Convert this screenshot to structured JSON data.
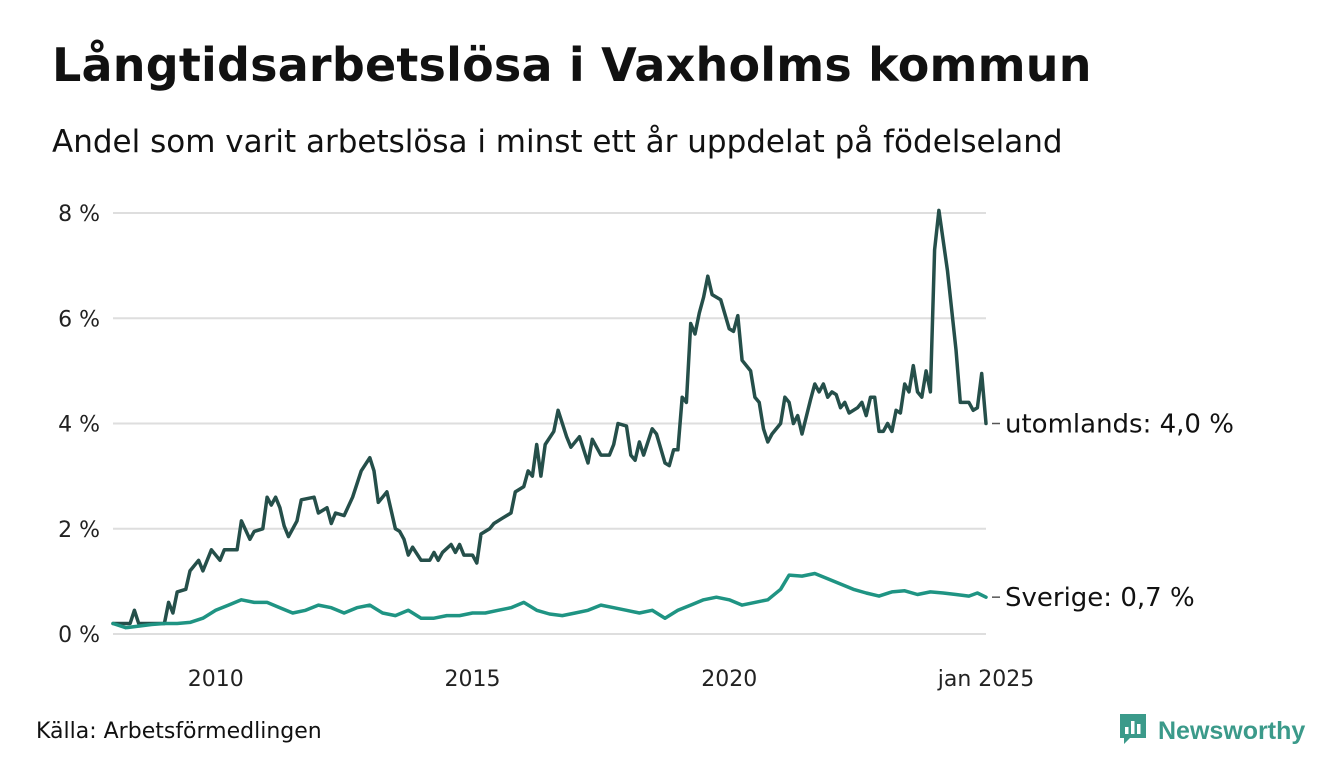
{
  "title": "Långtidsarbetslösa i Vaxholms kommun",
  "subtitle": "Andel som varit arbetslösa i minst ett år uppdelat på födelseland",
  "source": "Källa: Arbetsförmedlingen",
  "brand": {
    "name": "Newsworthy",
    "icon": "newsworthy-logo-icon",
    "color": "#3b9a8a"
  },
  "chart_data": {
    "type": "line",
    "title": "Långtidsarbetslösa i Vaxholms kommun",
    "subtitle": "Andel som varit arbetslösa i minst ett år uppdelat på födelseland",
    "xlabel": "",
    "ylabel": "",
    "x_start": "2008-01",
    "x_end": "2025-01",
    "ylim": [
      0,
      8
    ],
    "y_ticks": [
      0,
      2,
      4,
      6,
      8
    ],
    "y_tick_labels": [
      "0 %",
      "2 %",
      "4 %",
      "6 %",
      "8 %"
    ],
    "x_tick_labels": [
      {
        "date": "2010-01",
        "label": "2010"
      },
      {
        "date": "2015-01",
        "label": "2015"
      },
      {
        "date": "2020-01",
        "label": "2020"
      },
      {
        "date": "2025-01",
        "label": "jan 2025"
      }
    ],
    "grid": true,
    "series": [
      {
        "name": "utomlands",
        "end_label": "utomlands: 4,0 %",
        "color": "#254f4a",
        "points": [
          [
            "2008-01",
            0.2
          ],
          [
            "2008-05",
            0.2
          ],
          [
            "2008-06",
            0.45
          ],
          [
            "2008-07",
            0.2
          ],
          [
            "2009-01",
            0.2
          ],
          [
            "2009-02",
            0.6
          ],
          [
            "2009-03",
            0.4
          ],
          [
            "2009-04",
            0.8
          ],
          [
            "2009-06",
            0.85
          ],
          [
            "2009-07",
            1.2
          ],
          [
            "2009-09",
            1.4
          ],
          [
            "2009-10",
            1.2
          ],
          [
            "2009-12",
            1.6
          ],
          [
            "2010-02",
            1.4
          ],
          [
            "2010-03",
            1.6
          ],
          [
            "2010-06",
            1.6
          ],
          [
            "2010-07",
            2.15
          ],
          [
            "2010-09",
            1.8
          ],
          [
            "2010-10",
            1.95
          ],
          [
            "2010-12",
            2.0
          ],
          [
            "2011-01",
            2.6
          ],
          [
            "2011-02",
            2.45
          ],
          [
            "2011-03",
            2.6
          ],
          [
            "2011-04",
            2.4
          ],
          [
            "2011-05",
            2.05
          ],
          [
            "2011-06",
            1.85
          ],
          [
            "2011-08",
            2.15
          ],
          [
            "2011-09",
            2.55
          ],
          [
            "2011-12",
            2.6
          ],
          [
            "2012-01",
            2.3
          ],
          [
            "2012-03",
            2.4
          ],
          [
            "2012-04",
            2.1
          ],
          [
            "2012-05",
            2.3
          ],
          [
            "2012-07",
            2.25
          ],
          [
            "2012-09",
            2.6
          ],
          [
            "2012-11",
            3.1
          ],
          [
            "2013-01",
            3.35
          ],
          [
            "2013-02",
            3.1
          ],
          [
            "2013-03",
            2.5
          ],
          [
            "2013-05",
            2.7
          ],
          [
            "2013-07",
            2.0
          ],
          [
            "2013-08",
            1.95
          ],
          [
            "2013-09",
            1.8
          ],
          [
            "2013-10",
            1.5
          ],
          [
            "2013-11",
            1.65
          ],
          [
            "2014-01",
            1.4
          ],
          [
            "2014-03",
            1.4
          ],
          [
            "2014-04",
            1.55
          ],
          [
            "2014-05",
            1.4
          ],
          [
            "2014-06",
            1.55
          ],
          [
            "2014-08",
            1.7
          ],
          [
            "2014-09",
            1.55
          ],
          [
            "2014-10",
            1.7
          ],
          [
            "2014-11",
            1.5
          ],
          [
            "2015-01",
            1.5
          ],
          [
            "2015-02",
            1.35
          ],
          [
            "2015-03",
            1.9
          ],
          [
            "2015-05",
            2.0
          ],
          [
            "2015-06",
            2.1
          ],
          [
            "2015-08",
            2.2
          ],
          [
            "2015-10",
            2.3
          ],
          [
            "2015-11",
            2.7
          ],
          [
            "2016-01",
            2.8
          ],
          [
            "2016-02",
            3.1
          ],
          [
            "2016-03",
            3.0
          ],
          [
            "2016-04",
            3.6
          ],
          [
            "2016-05",
            3.0
          ],
          [
            "2016-06",
            3.6
          ],
          [
            "2016-08",
            3.85
          ],
          [
            "2016-09",
            4.25
          ],
          [
            "2016-11",
            3.75
          ],
          [
            "2016-12",
            3.55
          ],
          [
            "2017-02",
            3.75
          ],
          [
            "2017-04",
            3.25
          ],
          [
            "2017-05",
            3.7
          ],
          [
            "2017-07",
            3.4
          ],
          [
            "2017-09",
            3.4
          ],
          [
            "2017-10",
            3.6
          ],
          [
            "2017-11",
            4.0
          ],
          [
            "2018-01",
            3.95
          ],
          [
            "2018-02",
            3.4
          ],
          [
            "2018-03",
            3.3
          ],
          [
            "2018-04",
            3.65
          ],
          [
            "2018-05",
            3.4
          ],
          [
            "2018-07",
            3.9
          ],
          [
            "2018-08",
            3.8
          ],
          [
            "2018-10",
            3.25
          ],
          [
            "2018-11",
            3.2
          ],
          [
            "2018-12",
            3.5
          ],
          [
            "2019-01",
            3.5
          ],
          [
            "2019-02",
            4.5
          ],
          [
            "2019-03",
            4.4
          ],
          [
            "2019-04",
            5.9
          ],
          [
            "2019-05",
            5.7
          ],
          [
            "2019-06",
            6.1
          ],
          [
            "2019-07",
            6.4
          ],
          [
            "2019-08",
            6.8
          ],
          [
            "2019-09",
            6.45
          ],
          [
            "2019-11",
            6.35
          ],
          [
            "2020-01",
            5.8
          ],
          [
            "2020-02",
            5.75
          ],
          [
            "2020-03",
            6.05
          ],
          [
            "2020-04",
            5.2
          ],
          [
            "2020-06",
            5.0
          ],
          [
            "2020-07",
            4.5
          ],
          [
            "2020-08",
            4.4
          ],
          [
            "2020-09",
            3.9
          ],
          [
            "2020-10",
            3.65
          ],
          [
            "2020-11",
            3.8
          ],
          [
            "2021-01",
            4.0
          ],
          [
            "2021-02",
            4.5
          ],
          [
            "2021-03",
            4.4
          ],
          [
            "2021-04",
            4.0
          ],
          [
            "2021-05",
            4.15
          ],
          [
            "2021-06",
            3.8
          ],
          [
            "2021-08",
            4.45
          ],
          [
            "2021-09",
            4.75
          ],
          [
            "2021-10",
            4.6
          ],
          [
            "2021-11",
            4.75
          ],
          [
            "2021-12",
            4.5
          ],
          [
            "2022-01",
            4.6
          ],
          [
            "2022-02",
            4.55
          ],
          [
            "2022-03",
            4.3
          ],
          [
            "2022-04",
            4.4
          ],
          [
            "2022-05",
            4.2
          ],
          [
            "2022-07",
            4.3
          ],
          [
            "2022-08",
            4.4
          ],
          [
            "2022-09",
            4.15
          ],
          [
            "2022-10",
            4.5
          ],
          [
            "2022-11",
            4.5
          ],
          [
            "2022-12",
            3.85
          ],
          [
            "2023-01",
            3.85
          ],
          [
            "2023-02",
            4.0
          ],
          [
            "2023-03",
            3.85
          ],
          [
            "2023-04",
            4.25
          ],
          [
            "2023-05",
            4.2
          ],
          [
            "2023-06",
            4.75
          ],
          [
            "2023-07",
            4.6
          ],
          [
            "2023-08",
            5.1
          ],
          [
            "2023-09",
            4.6
          ],
          [
            "2023-10",
            4.5
          ],
          [
            "2023-11",
            5.0
          ],
          [
            "2023-12",
            4.6
          ],
          [
            "2024-01",
            7.3
          ],
          [
            "2024-02",
            8.05
          ],
          [
            "2024-04",
            6.9
          ],
          [
            "2024-06",
            5.4
          ],
          [
            "2024-07",
            4.4
          ],
          [
            "2024-09",
            4.4
          ],
          [
            "2024-10",
            4.25
          ],
          [
            "2024-11",
            4.3
          ],
          [
            "2024-12",
            4.95
          ],
          [
            "2025-01",
            4.0
          ]
        ]
      },
      {
        "name": "Sverige",
        "end_label": "Sverige: 0,7 %",
        "color": "#1f9483",
        "points": [
          [
            "2008-01",
            0.2
          ],
          [
            "2008-04",
            0.12
          ],
          [
            "2008-07",
            0.15
          ],
          [
            "2008-10",
            0.18
          ],
          [
            "2009-01",
            0.2
          ],
          [
            "2009-04",
            0.2
          ],
          [
            "2009-07",
            0.22
          ],
          [
            "2009-10",
            0.3
          ],
          [
            "2010-01",
            0.45
          ],
          [
            "2010-04",
            0.55
          ],
          [
            "2010-07",
            0.65
          ],
          [
            "2010-10",
            0.6
          ],
          [
            "2011-01",
            0.6
          ],
          [
            "2011-04",
            0.5
          ],
          [
            "2011-07",
            0.4
          ],
          [
            "2011-10",
            0.45
          ],
          [
            "2012-01",
            0.55
          ],
          [
            "2012-04",
            0.5
          ],
          [
            "2012-07",
            0.4
          ],
          [
            "2012-10",
            0.5
          ],
          [
            "2013-01",
            0.55
          ],
          [
            "2013-04",
            0.4
          ],
          [
            "2013-07",
            0.35
          ],
          [
            "2013-10",
            0.45
          ],
          [
            "2014-01",
            0.3
          ],
          [
            "2014-04",
            0.3
          ],
          [
            "2014-07",
            0.35
          ],
          [
            "2014-10",
            0.35
          ],
          [
            "2015-01",
            0.4
          ],
          [
            "2015-04",
            0.4
          ],
          [
            "2015-07",
            0.45
          ],
          [
            "2015-10",
            0.5
          ],
          [
            "2016-01",
            0.6
          ],
          [
            "2016-04",
            0.45
          ],
          [
            "2016-07",
            0.38
          ],
          [
            "2016-10",
            0.35
          ],
          [
            "2017-01",
            0.4
          ],
          [
            "2017-04",
            0.45
          ],
          [
            "2017-07",
            0.55
          ],
          [
            "2017-10",
            0.5
          ],
          [
            "2018-01",
            0.45
          ],
          [
            "2018-04",
            0.4
          ],
          [
            "2018-07",
            0.45
          ],
          [
            "2018-10",
            0.3
          ],
          [
            "2019-01",
            0.45
          ],
          [
            "2019-04",
            0.55
          ],
          [
            "2019-07",
            0.65
          ],
          [
            "2019-10",
            0.7
          ],
          [
            "2020-01",
            0.65
          ],
          [
            "2020-04",
            0.55
          ],
          [
            "2020-07",
            0.6
          ],
          [
            "2020-10",
            0.65
          ],
          [
            "2021-01",
            0.85
          ],
          [
            "2021-03",
            1.12
          ],
          [
            "2021-06",
            1.1
          ],
          [
            "2021-09",
            1.15
          ],
          [
            "2021-12",
            1.05
          ],
          [
            "2022-03",
            0.95
          ],
          [
            "2022-06",
            0.85
          ],
          [
            "2022-09",
            0.78
          ],
          [
            "2022-12",
            0.72
          ],
          [
            "2023-03",
            0.8
          ],
          [
            "2023-06",
            0.82
          ],
          [
            "2023-09",
            0.75
          ],
          [
            "2023-12",
            0.8
          ],
          [
            "2024-03",
            0.78
          ],
          [
            "2024-06",
            0.75
          ],
          [
            "2024-09",
            0.72
          ],
          [
            "2024-11",
            0.78
          ],
          [
            "2025-01",
            0.7
          ]
        ]
      }
    ]
  }
}
